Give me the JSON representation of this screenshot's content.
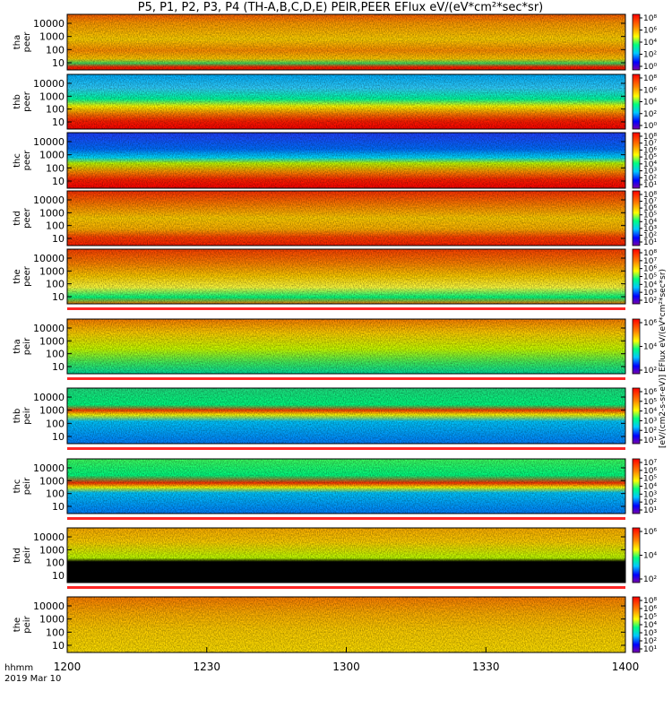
{
  "chart_data": {
    "type": "heatmap",
    "title": "P5, P1, P2, P3, P4 (TH-A,B,C,D,E) PEIR,PEER EFlux eV/(eV*cm²*sec*sr)",
    "x_ticks": [
      "1200",
      "1230",
      "1300",
      "1330",
      "1400"
    ],
    "x_range": [
      "12:00",
      "14:00"
    ],
    "x_label_line1": "hhmm",
    "x_label_line2": "2019 Mar 10",
    "y_scale": "log",
    "colorbar_scale": "log",
    "colorbar_label": "[eV/(cm2-s-sr-eV)] EFlux eV/(eV*cm²*sec*sr)",
    "panels": [
      {
        "probe": "tha",
        "species": "peer",
        "y_ticks": [
          "10000",
          "1000",
          "100",
          "10"
        ],
        "cbar_ticks": [
          "10⁸",
          "10⁶",
          "10⁴",
          "10²",
          "10⁰"
        ]
      },
      {
        "probe": "thb",
        "species": "peer",
        "y_ticks": [
          "10000",
          "1000",
          "100",
          "10"
        ],
        "cbar_ticks": [
          "10⁸",
          "10⁶",
          "10⁴",
          "10²",
          "10⁰"
        ]
      },
      {
        "probe": "thc",
        "species": "peer",
        "y_ticks": [
          "10000",
          "1000",
          "100",
          "10"
        ],
        "cbar_ticks": [
          "10⁸",
          "10⁷",
          "10⁶",
          "10⁵",
          "10⁴",
          "10³",
          "10²",
          "10¹"
        ]
      },
      {
        "probe": "thd",
        "species": "peer",
        "y_ticks": [
          "10000",
          "1000",
          "100",
          "10"
        ],
        "cbar_ticks": [
          "10⁸",
          "10⁷",
          "10⁶",
          "10⁵",
          "10⁴",
          "10³",
          "10²",
          "10¹"
        ]
      },
      {
        "probe": "the",
        "species": "peer",
        "y_ticks": [
          "10000",
          "1000",
          "100",
          "10"
        ],
        "cbar_ticks": [
          "10⁸",
          "10⁷",
          "10⁶",
          "10⁵",
          "10⁴",
          "10³",
          "10²"
        ]
      },
      {
        "probe": "tha",
        "species": "peir",
        "y_ticks": [
          "10000",
          "1000",
          "100",
          "10"
        ],
        "cbar_ticks": [
          "10⁶",
          "10⁴",
          "10²"
        ]
      },
      {
        "probe": "thb",
        "species": "peir",
        "y_ticks": [
          "10000",
          "1000",
          "100",
          "10"
        ],
        "cbar_ticks": [
          "10⁶",
          "10⁵",
          "10⁴",
          "10³",
          "10²",
          "10¹"
        ]
      },
      {
        "probe": "thc",
        "species": "peir",
        "y_ticks": [
          "10000",
          "1000",
          "100",
          "10"
        ],
        "cbar_ticks": [
          "10⁷",
          "10⁶",
          "10⁵",
          "10⁴",
          "10³",
          "10²",
          "10¹"
        ]
      },
      {
        "probe": "thd",
        "species": "peir",
        "y_ticks": [
          "10000",
          "1000",
          "100",
          "10"
        ],
        "cbar_ticks": [
          "10⁶",
          "10⁴",
          "10²"
        ]
      },
      {
        "probe": "the",
        "species": "peir",
        "y_ticks": [
          "10000",
          "1000",
          "100",
          "10"
        ],
        "cbar_ticks": [
          "10⁸",
          "10⁶",
          "10⁵",
          "10⁴",
          "10³",
          "10²",
          "10¹"
        ]
      }
    ]
  }
}
